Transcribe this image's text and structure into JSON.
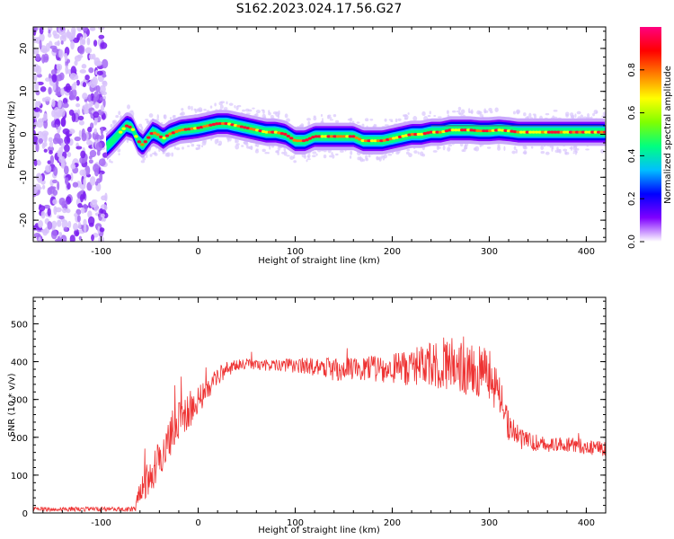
{
  "title": "S162.2023.024.17.56.G27",
  "chart_data": [
    {
      "type": "heatmap",
      "xlabel": "Height of straight line (km)",
      "ylabel": "Frequency (Hz)",
      "xlim": [
        -170,
        420
      ],
      "ylim": [
        -25,
        25
      ],
      "xticks": [
        -100,
        0,
        100,
        200,
        300,
        400
      ],
      "yticks": [
        -20,
        -10,
        0,
        10,
        20
      ],
      "noise_region_x": [
        -170,
        -95
      ],
      "ridge": {
        "x": [
          -95,
          -88,
          -80,
          -74,
          -68,
          -62,
          -57,
          -52,
          -47,
          -42,
          -36,
          -30,
          -24,
          -18,
          -10,
          0,
          10,
          20,
          30,
          40,
          50,
          60,
          70,
          80,
          90,
          100,
          110,
          120,
          130,
          140,
          150,
          160,
          170,
          180,
          190,
          200,
          210,
          220,
          230,
          240,
          250,
          260,
          270,
          280,
          290,
          300,
          310,
          320,
          330,
          340,
          350,
          360,
          370,
          380,
          390,
          400,
          410,
          420
        ],
        "y": [
          -3,
          -1.5,
          0.5,
          2,
          1.5,
          -1.5,
          -2.5,
          -1,
          0.5,
          0,
          -1,
          0,
          0.5,
          1,
          1.2,
          1.5,
          2,
          2.5,
          2.5,
          2,
          1.5,
          1,
          0.5,
          0.5,
          0,
          -1.5,
          -1.5,
          -0.5,
          -0.5,
          -0.5,
          -0.5,
          -0.5,
          -1.5,
          -1.5,
          -1.5,
          -1,
          -0.5,
          0,
          0,
          0.5,
          0.5,
          1,
          1,
          1,
          0.8,
          0.8,
          1,
          0.8,
          0.5,
          0.5,
          0.5,
          0.5,
          0.5,
          0.5,
          0.5,
          0.5,
          0.5,
          0.5
        ]
      },
      "colorbar": {
        "label": "Normalized spectral amplitude",
        "range": [
          0,
          1
        ],
        "ticks": [
          "0.0",
          "0.2",
          "0.4",
          "0.6",
          "0.8"
        ],
        "colors": [
          "#ffffff",
          "#7f00ff",
          "#0000ff",
          "#00bfff",
          "#00ff80",
          "#80ff00",
          "#ffff00",
          "#ff8000",
          "#ff0000",
          "#ff0080"
        ]
      }
    },
    {
      "type": "line",
      "xlabel": "Height of straight line (km)",
      "ylabel": "SNR (10 * v/v)",
      "xlim": [
        -170,
        420
      ],
      "ylim": [
        0,
        570
      ],
      "xticks": [
        -100,
        0,
        100,
        200,
        300,
        400
      ],
      "yticks": [
        0,
        100,
        200,
        300,
        400,
        500
      ],
      "series": [
        {
          "color": "#ee3333",
          "x": [
            -170,
            -100,
            -65,
            -60,
            -50,
            -40,
            -30,
            -20,
            -10,
            0,
            10,
            20,
            30,
            40,
            50,
            60,
            80,
            100,
            120,
            140,
            160,
            180,
            200,
            220,
            240,
            260,
            280,
            300,
            310,
            320,
            330,
            340,
            360,
            380,
            400,
            420
          ],
          "y": [
            10,
            10,
            10,
            60,
            90,
            140,
            200,
            240,
            270,
            300,
            330,
            360,
            380,
            390,
            395,
            390,
            390,
            390,
            385,
            380,
            380,
            380,
            380,
            385,
            390,
            400,
            390,
            370,
            310,
            230,
            200,
            190,
            180,
            180,
            175,
            170
          ],
          "spread": [
            6,
            6,
            6,
            40,
            50,
            60,
            60,
            55,
            50,
            40,
            30,
            25,
            20,
            15,
            15,
            15,
            15,
            20,
            25,
            30,
            30,
            35,
            40,
            50,
            60,
            80,
            80,
            70,
            60,
            40,
            30,
            25,
            20,
            20,
            20,
            20
          ]
        }
      ]
    }
  ]
}
